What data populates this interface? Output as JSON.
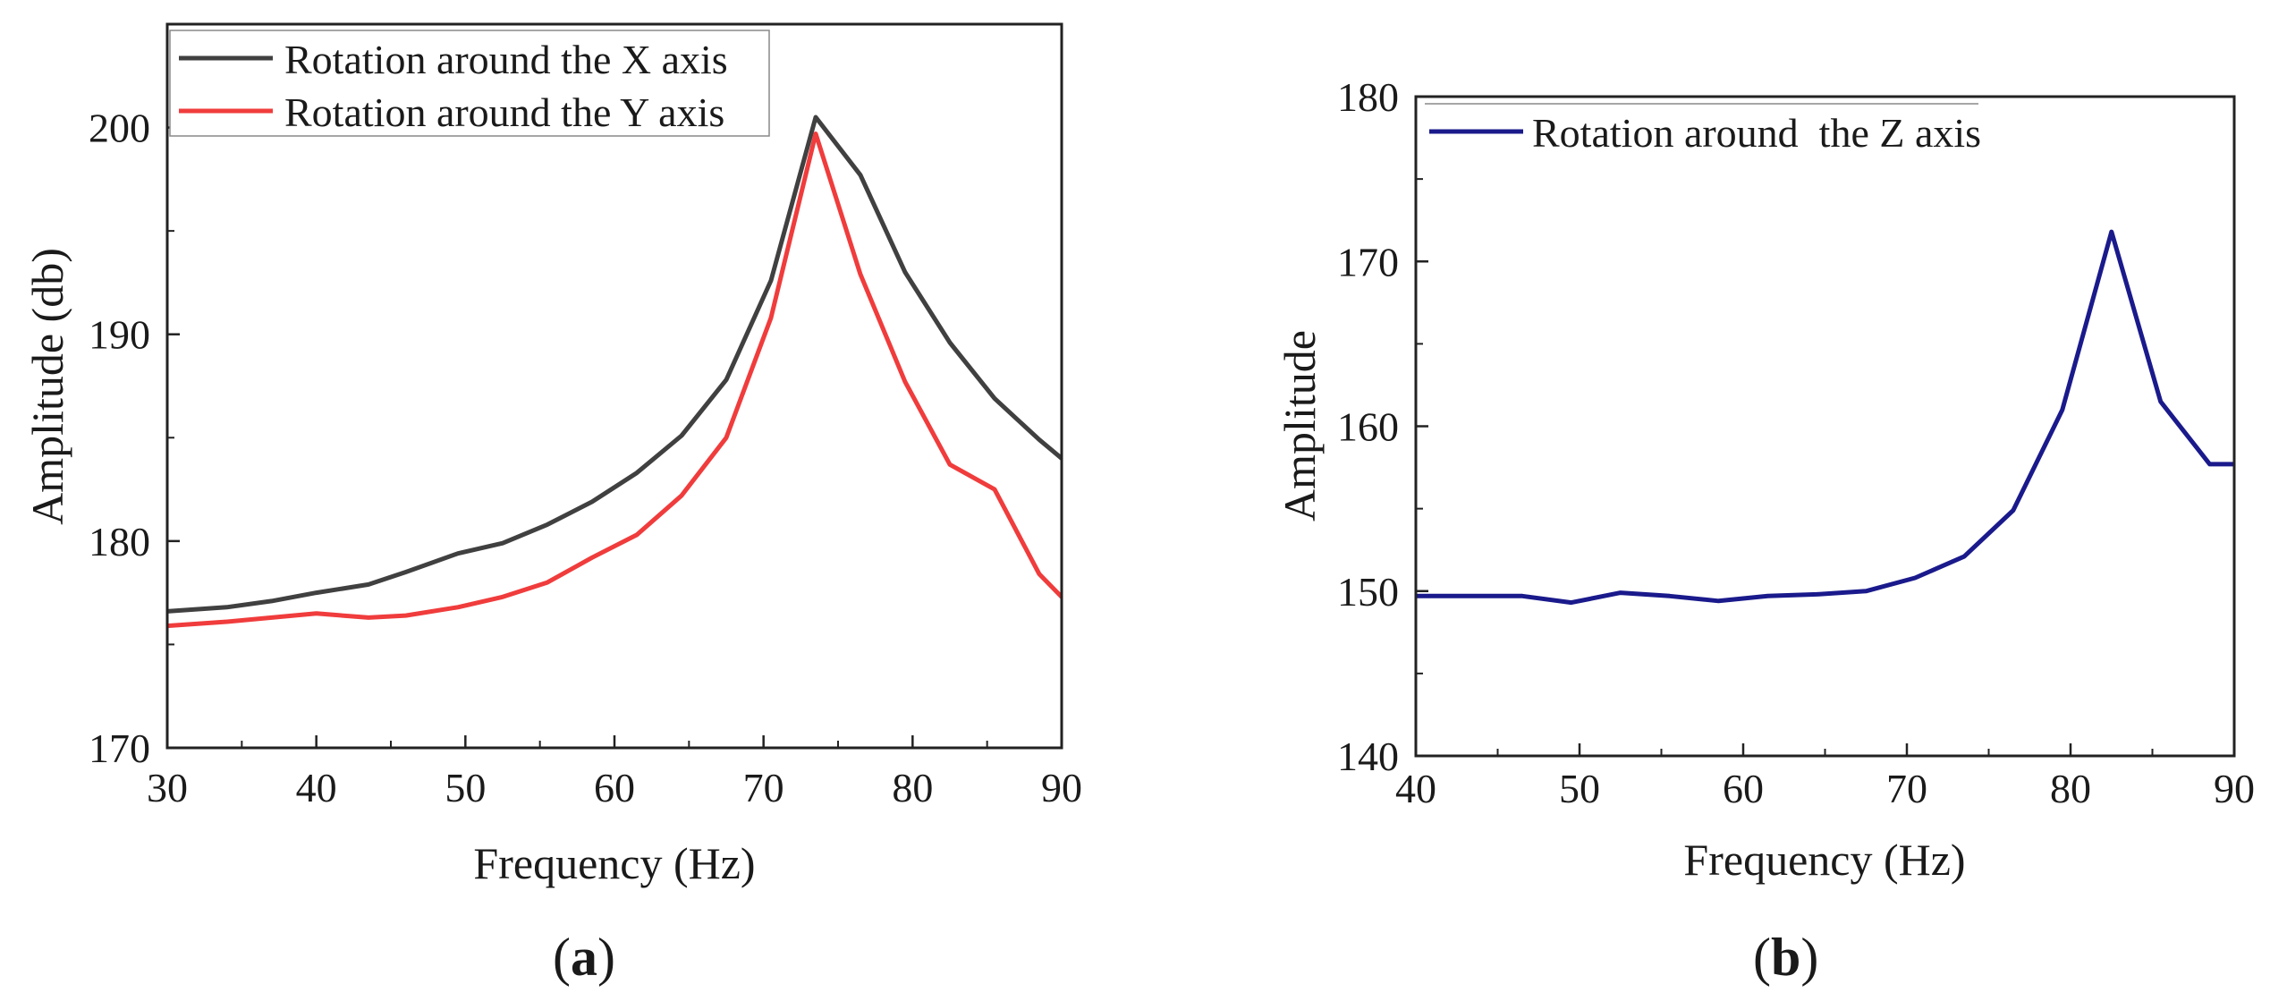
{
  "chart_data": [
    {
      "type": "line",
      "panel_label": "a",
      "title": "",
      "xlabel": "Frequency (Hz)",
      "ylabel": "Amplitude (db)",
      "xlim": [
        30,
        90
      ],
      "ylim": [
        170,
        205
      ],
      "xticks": [
        30,
        40,
        50,
        60,
        70,
        80,
        90
      ],
      "yticks": [
        170,
        180,
        190,
        200
      ],
      "grid": false,
      "legend_position": "top-left",
      "x": [
        30,
        34,
        37,
        40,
        43.5,
        46,
        49.5,
        52.5,
        55.5,
        58.5,
        61.5,
        64.5,
        67.5,
        70.5,
        73.5,
        76.5,
        79.5,
        82.5,
        85.5,
        88.5,
        90
      ],
      "series": [
        {
          "name": "Rotation around the X axis",
          "color": "#404040",
          "values": [
            176.6,
            176.8,
            177.1,
            177.5,
            177.9,
            178.5,
            179.4,
            179.9,
            180.8,
            181.9,
            183.3,
            185.1,
            187.8,
            192.6,
            200.5,
            197.7,
            193.0,
            189.6,
            186.9,
            184.9,
            184.0
          ]
        },
        {
          "name": "Rotation around the Y axis",
          "color": "#f03c3c",
          "values": [
            175.9,
            176.1,
            176.3,
            176.5,
            176.3,
            176.4,
            176.8,
            177.3,
            178.0,
            179.2,
            180.3,
            182.2,
            185.0,
            190.8,
            199.7,
            192.9,
            187.7,
            183.7,
            182.5,
            178.4,
            177.3
          ]
        }
      ]
    },
    {
      "type": "line",
      "panel_label": "b",
      "title": "",
      "xlabel": "Frequency (Hz)",
      "ylabel": "Amplitude",
      "xlim": [
        40,
        90
      ],
      "ylim": [
        140,
        180
      ],
      "xticks": [
        40,
        50,
        60,
        70,
        80,
        90
      ],
      "yticks": [
        140,
        150,
        160,
        170,
        180
      ],
      "grid": false,
      "legend_position": "top-left",
      "x": [
        40,
        43.5,
        46.5,
        49.5,
        52.5,
        55.5,
        58.5,
        61.5,
        64.5,
        67.5,
        70.5,
        73.5,
        76.5,
        79.5,
        82.5,
        85.5,
        88.5,
        90
      ],
      "series": [
        {
          "name": "Rotation around  the Z axis",
          "color": "#1a1a8c",
          "values": [
            149.7,
            149.7,
            149.7,
            149.3,
            149.9,
            149.7,
            149.4,
            149.7,
            149.8,
            150.0,
            150.8,
            152.1,
            154.9,
            161.0,
            171.8,
            161.5,
            157.7,
            157.7
          ]
        }
      ]
    }
  ]
}
